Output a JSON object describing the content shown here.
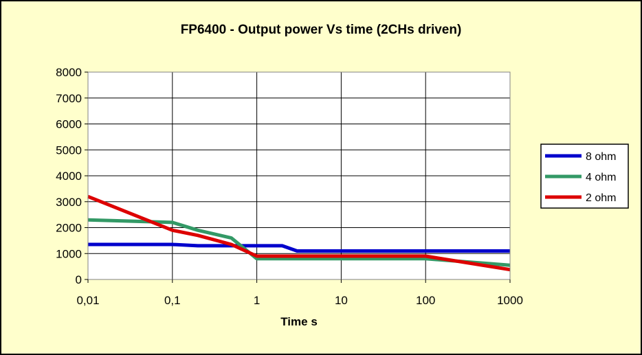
{
  "chart_data": {
    "type": "line",
    "title": "FP6400 - Output power Vs time (2CHs driven)",
    "xlabel": "Time s",
    "ylabel": "",
    "xscale": "log",
    "xlim": [
      0.01,
      1000
    ],
    "ylim": [
      0,
      8000
    ],
    "x_tick_labels": [
      "0,01",
      "0,1",
      "1",
      "10",
      "100",
      "1000"
    ],
    "x_tick_values": [
      0.01,
      0.1,
      1,
      10,
      100,
      1000
    ],
    "y_tick_values": [
      0,
      1000,
      2000,
      3000,
      4000,
      5000,
      6000,
      7000,
      8000
    ],
    "y_tick_labels": [
      "0",
      "1000",
      "2000",
      "3000",
      "4000",
      "5000",
      "6000",
      "7000",
      "8000"
    ],
    "grid": true,
    "legend_position": "right",
    "background_color": "#ffffcc",
    "plot_background_color": "#ffffff",
    "series": [
      {
        "name": "8 ohm",
        "color": "#0000cc",
        "points": [
          [
            0.01,
            1350
          ],
          [
            0.1,
            1350
          ],
          [
            0.2,
            1300
          ],
          [
            1,
            1300
          ],
          [
            2,
            1300
          ],
          [
            3,
            1100
          ],
          [
            10,
            1100
          ],
          [
            100,
            1100
          ],
          [
            1000,
            1100
          ]
        ]
      },
      {
        "name": "4 ohm",
        "color": "#339966",
        "points": [
          [
            0.01,
            2300
          ],
          [
            0.1,
            2200
          ],
          [
            0.2,
            1900
          ],
          [
            0.5,
            1600
          ],
          [
            1,
            800
          ],
          [
            10,
            800
          ],
          [
            100,
            800
          ],
          [
            1000,
            550
          ]
        ]
      },
      {
        "name": "2 ohm",
        "color": "#dd0000",
        "points": [
          [
            0.01,
            3200
          ],
          [
            0.1,
            1900
          ],
          [
            0.2,
            1700
          ],
          [
            0.5,
            1350
          ],
          [
            1,
            900
          ],
          [
            10,
            900
          ],
          [
            100,
            900
          ],
          [
            1000,
            380
          ]
        ]
      }
    ]
  }
}
